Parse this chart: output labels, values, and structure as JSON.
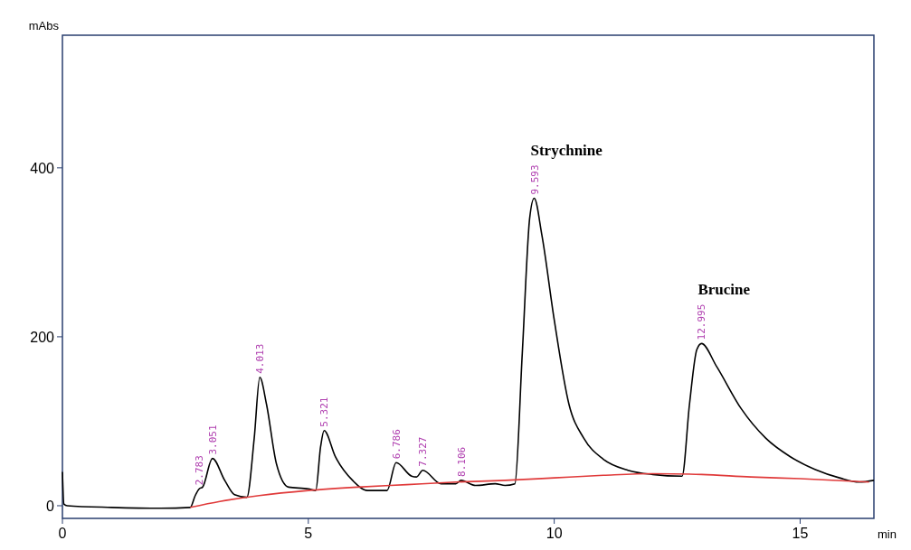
{
  "chart_data": {
    "type": "line",
    "xlabel": "min",
    "ylabel": "mAbs",
    "xlim": [
      0,
      16.5
    ],
    "ylim": [
      -15,
      557
    ],
    "xticks": [
      0,
      5,
      10,
      15
    ],
    "yticks": [
      0,
      200,
      400
    ],
    "grid": false,
    "marker": "none",
    "line_style": "solid",
    "series": [
      {
        "color": "#000000",
        "x": [
          0,
          0.03,
          0.1,
          1,
          2,
          2.6,
          2.7,
          2.783,
          2.85,
          3.051,
          3.3,
          3.5,
          3.75,
          3.9,
          4.013,
          4.15,
          4.35,
          4.6,
          5.0,
          5.15,
          5.25,
          5.321,
          5.55,
          5.9,
          6.2,
          6.6,
          6.786,
          7.1,
          7.2,
          7.327,
          7.7,
          8.0,
          8.106,
          8.4,
          8.8,
          9.0,
          9.2,
          9.35,
          9.5,
          9.593,
          9.75,
          10.0,
          10.3,
          10.6,
          11.0,
          11.5,
          12.0,
          12.6,
          12.75,
          12.9,
          12.995,
          13.3,
          13.8,
          14.3,
          14.8,
          15.3,
          15.8,
          16.2,
          16.5
        ],
        "values": [
          40,
          2,
          0,
          -2,
          -3,
          -2,
          12,
          20,
          22,
          56,
          30,
          13,
          10,
          80,
          152,
          120,
          50,
          22,
          20,
          18,
          70,
          89,
          58,
          30,
          18,
          18,
          51,
          35,
          34,
          42,
          26,
          26,
          30,
          24,
          26,
          24,
          26,
          180,
          340,
          364,
          320,
          220,
          120,
          80,
          55,
          42,
          37,
          35,
          120,
          185,
          192,
          165,
          115,
          80,
          58,
          43,
          33,
          28,
          30
        ]
      },
      {
        "color": "#e03a3a",
        "x": [
          2.6,
          3.2,
          4,
          5,
          6,
          7,
          8,
          9,
          10,
          11,
          12,
          13,
          14,
          15,
          16.4
        ],
        "values": [
          -2,
          5,
          12,
          18,
          22,
          25,
          28,
          30,
          33,
          36,
          38,
          37,
          34,
          32,
          28
        ]
      }
    ],
    "annotations": [
      {
        "text": "2.783",
        "x": 2.783,
        "y": 20
      },
      {
        "text": "3.051",
        "x": 3.051,
        "y": 56
      },
      {
        "text": "4.013",
        "x": 4.013,
        "y": 152
      },
      {
        "text": "5.321",
        "x": 5.321,
        "y": 89
      },
      {
        "text": "6.786",
        "x": 6.786,
        "y": 51
      },
      {
        "text": "7.327",
        "x": 7.327,
        "y": 42
      },
      {
        "text": "8.106",
        "x": 8.106,
        "y": 30
      },
      {
        "text": "9.593",
        "x": 9.593,
        "y": 364
      },
      {
        "text": "12.995",
        "x": 12.995,
        "y": 192
      },
      {
        "text": "Strychnine",
        "x": 9.593,
        "y": 364
      },
      {
        "text": "Brucine",
        "x": 12.995,
        "y": 192
      }
    ]
  }
}
